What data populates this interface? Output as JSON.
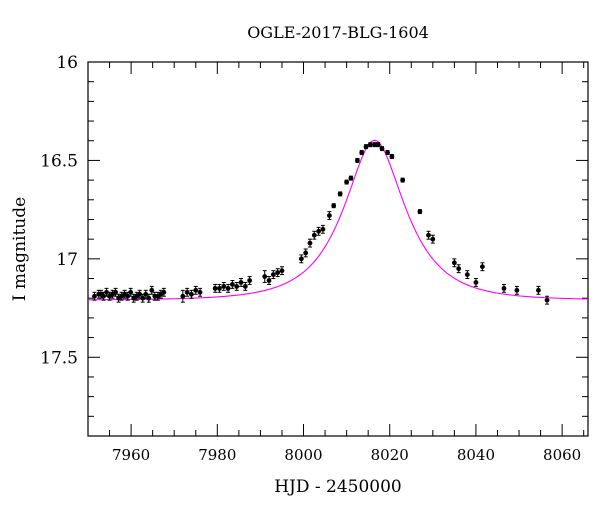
{
  "chart_data": {
    "type": "scatter",
    "title": "OGLE-2017-BLG-1604",
    "xlabel": "HJD - 2450000",
    "ylabel": "I magnitude",
    "xlim": [
      7950,
      8066
    ],
    "ylim": [
      17.9,
      16.0
    ],
    "y_inverted": true,
    "grid": false,
    "x_ticks": [
      7960,
      7980,
      8000,
      8020,
      8040,
      8060
    ],
    "x_tick_labels": [
      "7960",
      "7980",
      "8000",
      "8020",
      "8040",
      "8060"
    ],
    "y_ticks": [
      16.0,
      16.5,
      17.0,
      17.5
    ],
    "y_tick_labels": [
      "16",
      "16.5",
      "17",
      "17.5"
    ],
    "point_color": "#000000",
    "model_color": "#ff00ff",
    "series": [
      {
        "kind": "points_with_errorbars",
        "x": [
          7951.5,
          7952.5,
          7953.0,
          7953.6,
          7954.3,
          7955.0,
          7955.7,
          7956.4,
          7957.1,
          7957.8,
          7958.5,
          7959.2,
          7959.9,
          7960.6,
          7961.3,
          7962.0,
          7962.7,
          7963.4,
          7964.1,
          7964.8,
          7965.5,
          7966.2,
          7966.9,
          7967.6,
          7972.0,
          7973.0,
          7974.0,
          7975.0,
          7976.0,
          7979.5,
          7980.5,
          7981.5,
          7982.5,
          7983.5,
          7984.5,
          7985.5,
          7986.5,
          7987.5,
          7991.0,
          7992.0,
          7993.0,
          7994.0,
          7995.0,
          7999.5,
          8000.5,
          8001.5,
          8002.5,
          8003.5,
          8004.5,
          8006.0,
          8007.0,
          8008.5,
          8010.0,
          8011.0,
          8012.5,
          8013.5,
          8014.5,
          8015.5,
          8016.5,
          8017.3,
          8018.2,
          8019.5,
          8020.5,
          8023.0,
          8027.0,
          8029.0,
          8030.0,
          8035.0,
          8036.0,
          8038.0,
          8040.0,
          8041.5,
          8046.5,
          8049.5,
          8054.5,
          8056.5
        ],
        "y": [
          17.19,
          17.18,
          17.18,
          17.19,
          17.17,
          17.19,
          17.18,
          17.17,
          17.2,
          17.19,
          17.18,
          17.19,
          17.17,
          17.2,
          17.19,
          17.18,
          17.2,
          17.18,
          17.2,
          17.16,
          17.19,
          17.19,
          17.18,
          17.17,
          17.19,
          17.17,
          17.18,
          17.16,
          17.17,
          17.15,
          17.15,
          17.14,
          17.15,
          17.13,
          17.14,
          17.12,
          17.14,
          17.11,
          17.09,
          17.11,
          17.08,
          17.07,
          17.06,
          17.0,
          16.97,
          16.92,
          16.88,
          16.86,
          16.85,
          16.78,
          16.73,
          16.67,
          16.61,
          16.59,
          16.5,
          16.46,
          16.43,
          16.42,
          16.42,
          16.42,
          16.44,
          16.46,
          16.48,
          16.6,
          16.76,
          16.88,
          16.9,
          17.02,
          17.05,
          17.08,
          17.12,
          17.04,
          17.15,
          17.16,
          17.16,
          17.21
        ],
        "yerr": [
          0.02,
          0.02,
          0.02,
          0.02,
          0.02,
          0.02,
          0.02,
          0.02,
          0.02,
          0.02,
          0.02,
          0.02,
          0.02,
          0.02,
          0.02,
          0.02,
          0.02,
          0.02,
          0.02,
          0.02,
          0.02,
          0.02,
          0.02,
          0.02,
          0.03,
          0.02,
          0.02,
          0.02,
          0.02,
          0.02,
          0.02,
          0.02,
          0.02,
          0.02,
          0.02,
          0.02,
          0.02,
          0.02,
          0.03,
          0.02,
          0.02,
          0.02,
          0.02,
          0.02,
          0.02,
          0.02,
          0.02,
          0.02,
          0.02,
          0.02,
          0.01,
          0.01,
          0.01,
          0.01,
          0.01,
          0.01,
          0.01,
          0.01,
          0.01,
          0.01,
          0.01,
          0.01,
          0.01,
          0.01,
          0.01,
          0.02,
          0.02,
          0.02,
          0.02,
          0.02,
          0.02,
          0.02,
          0.02,
          0.02,
          0.02,
          0.02
        ]
      },
      {
        "kind": "model_curve",
        "baseline_mag": 17.21,
        "t0": 8016.5,
        "u0": 0.52,
        "tE": 12.0
      }
    ]
  }
}
